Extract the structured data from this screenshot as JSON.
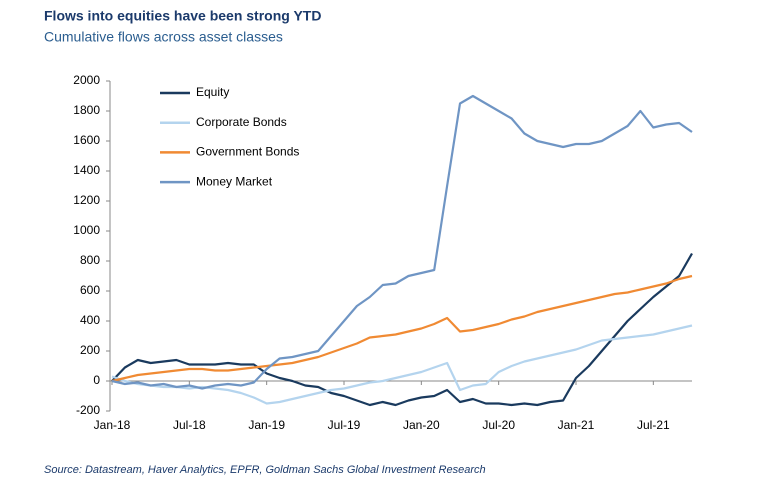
{
  "chart_data": {
    "type": "line",
    "title": "Flows into equities have been strong YTD",
    "subtitle": "Cumulative flows across asset classes",
    "source": "Source: Datastream, Haver Analytics, EPFR, Goldman Sachs Global Investment Research",
    "categories": [
      "Jan-18",
      null,
      null,
      null,
      null,
      null,
      "Jul-18",
      null,
      null,
      null,
      null,
      null,
      "Jan-19",
      null,
      null,
      null,
      null,
      null,
      "Jul-19",
      null,
      null,
      null,
      null,
      null,
      "Jan-20",
      null,
      null,
      null,
      null,
      null,
      "Jul-20",
      null,
      null,
      null,
      null,
      null,
      "Jan-21",
      null,
      null,
      null,
      null,
      null,
      "Jul-21",
      null,
      null,
      null
    ],
    "series": [
      {
        "name": "Equity",
        "color": "#1a3a5e",
        "values": [
          0,
          90,
          140,
          120,
          130,
          140,
          110,
          110,
          110,
          120,
          110,
          110,
          50,
          20,
          0,
          -30,
          -40,
          -80,
          -100,
          -130,
          -160,
          -140,
          -160,
          -130,
          -110,
          -100,
          -60,
          -140,
          -120,
          -150,
          -150,
          -160,
          -150,
          -160,
          -140,
          -130,
          20,
          100,
          200,
          300,
          400,
          480,
          560,
          630,
          700,
          850
        ]
      },
      {
        "name": "Corporate Bonds",
        "color": "#b4d4ee",
        "values": [
          30,
          0,
          -20,
          -30,
          -40,
          -40,
          -50,
          -40,
          -50,
          -60,
          -80,
          -110,
          -150,
          -140,
          -120,
          -100,
          -80,
          -60,
          -50,
          -30,
          -10,
          0,
          20,
          40,
          60,
          90,
          120,
          -60,
          -30,
          -20,
          60,
          100,
          130,
          150,
          170,
          190,
          210,
          240,
          270,
          280,
          290,
          300,
          310,
          330,
          350,
          370
        ]
      },
      {
        "name": "Government Bonds",
        "color": "#f08a33",
        "values": [
          0,
          20,
          40,
          50,
          60,
          70,
          80,
          80,
          70,
          70,
          80,
          90,
          100,
          110,
          120,
          140,
          160,
          190,
          220,
          250,
          290,
          300,
          310,
          330,
          350,
          380,
          420,
          330,
          340,
          360,
          380,
          410,
          430,
          460,
          480,
          500,
          520,
          540,
          560,
          580,
          590,
          610,
          630,
          650,
          680,
          700
        ]
      },
      {
        "name": "Money Market",
        "color": "#6f95c4",
        "values": [
          0,
          -20,
          -10,
          -30,
          -20,
          -40,
          -30,
          -50,
          -30,
          -20,
          -30,
          -10,
          80,
          150,
          160,
          180,
          200,
          300,
          400,
          500,
          560,
          640,
          650,
          700,
          720,
          740,
          1300,
          1850,
          1900,
          1850,
          1800,
          1750,
          1650,
          1600,
          1580,
          1560,
          1580,
          1580,
          1600,
          1650,
          1700,
          1800,
          1690,
          1710,
          1720,
          1660
        ]
      }
    ],
    "ylim": [
      -200,
      2000
    ],
    "yticks": [
      -200,
      0,
      200,
      400,
      600,
      800,
      1000,
      1200,
      1400,
      1600,
      1800,
      2000
    ],
    "legend": "upper-left"
  }
}
